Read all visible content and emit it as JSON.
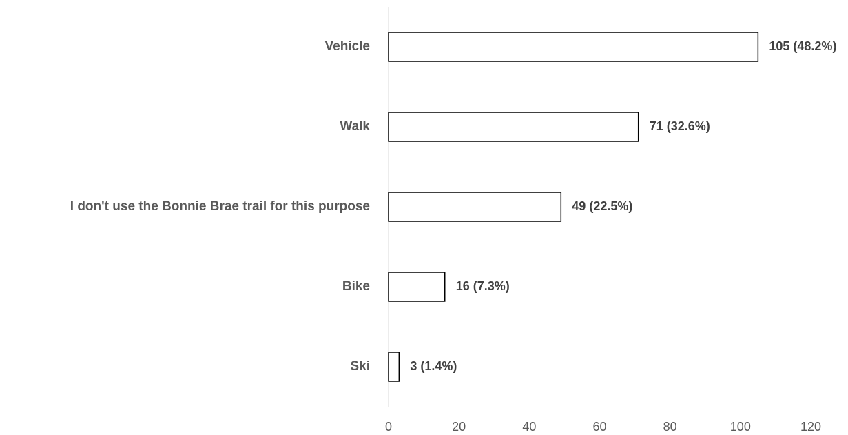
{
  "chart_data": {
    "type": "bar",
    "orientation": "horizontal",
    "categories": [
      "Vehicle",
      "Walk",
      "I don't use the Bonnie Brae trail for this purpose",
      "Bike",
      "Ski"
    ],
    "values": [
      105,
      71,
      49,
      16,
      3
    ],
    "value_labels": [
      "105 (48.2%)",
      "71 (32.6%)",
      "49 (22.5%)",
      "16 (7.3%)",
      "3 (1.4%)"
    ],
    "color": "#ffffff",
    "edgecolor": "#000000",
    "xlim": [
      0,
      120
    ],
    "xticks": [
      0,
      20,
      40,
      60,
      80,
      100,
      120
    ],
    "grid": false
  }
}
